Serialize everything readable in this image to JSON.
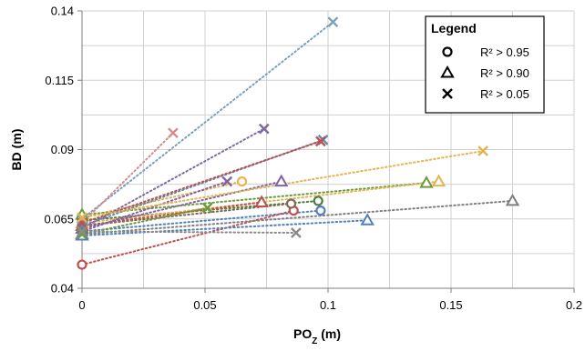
{
  "chart_data": {
    "type": "scatter",
    "xlabel_main": "PO",
    "xlabel_sub": "Z",
    "xlabel_unit": " (m)",
    "ylabel": "BD (m)",
    "xlim": [
      0,
      0.2
    ],
    "ylim": [
      0.04,
      0.14
    ],
    "x_ticks": [
      0,
      0.05,
      0.1,
      0.15,
      0.2
    ],
    "x_tick_labels": [
      "0",
      "0.05",
      "0.1",
      "0.15",
      "0.2"
    ],
    "y_ticks": [
      0.04,
      0.065,
      0.09,
      0.115,
      0.14
    ],
    "y_tick_labels": [
      "0.04",
      "0.065",
      "0.09",
      "0.115",
      "0.14"
    ],
    "grid": true,
    "legend": {
      "title": "Legend",
      "placement": "top-right",
      "entries": [
        {
          "marker": "circle",
          "label": "R² > 0.95"
        },
        {
          "marker": "triangle",
          "label": "R² > 0.90"
        },
        {
          "marker": "x",
          "label": "R² > 0.05"
        }
      ]
    },
    "series": [
      {
        "marker": "circle",
        "color": "#4f81bd",
        "points": [
          [
            0,
            0.0605
          ],
          [
            0.097,
            0.068
          ]
        ]
      },
      {
        "marker": "circle",
        "color": "#4a7c3f",
        "points": [
          [
            0,
            0.0645
          ],
          [
            0.096,
            0.0715
          ]
        ]
      },
      {
        "marker": "circle",
        "color": "#c0504d",
        "points": [
          [
            0,
            0.0485
          ],
          [
            0.086,
            0.068
          ]
        ]
      },
      {
        "marker": "circle",
        "color": "#7f6a4f",
        "points": [
          [
            0,
            0.0625
          ],
          [
            0.085,
            0.0705
          ]
        ]
      },
      {
        "marker": "circle",
        "color": "#e6b450",
        "points": [
          [
            0,
            0.0655
          ],
          [
            0.065,
            0.0785
          ]
        ]
      },
      {
        "marker": "triangle",
        "color": "#7f7f7f",
        "points": [
          [
            0,
            0.0595
          ],
          [
            0.175,
            0.0715
          ]
        ]
      },
      {
        "marker": "triangle",
        "color": "#6b9b3a",
        "points": [
          [
            0,
            0.0665
          ],
          [
            0.14,
            0.078
          ]
        ]
      },
      {
        "marker": "triangle",
        "color": "#4f81bd",
        "points": [
          [
            0,
            0.059
          ],
          [
            0.116,
            0.0645
          ]
        ]
      },
      {
        "marker": "triangle",
        "color": "#e6b450",
        "points": [
          [
            0,
            0.0635
          ],
          [
            0.145,
            0.0785
          ]
        ]
      },
      {
        "marker": "triangle",
        "color": "#c0504d",
        "points": [
          [
            0,
            0.0625
          ],
          [
            0.073,
            0.071
          ]
        ]
      },
      {
        "marker": "triangle",
        "color": "#8064a2",
        "points": [
          [
            0,
            0.0615
          ],
          [
            0.081,
            0.0785
          ]
        ]
      },
      {
        "marker": "x",
        "color": "#7ba0be",
        "points": [
          [
            0,
            0.065
          ],
          [
            0.102,
            0.136
          ]
        ]
      },
      {
        "marker": "x",
        "color": "#d68b8b",
        "points": [
          [
            0,
            0.0635
          ],
          [
            0.037,
            0.096
          ]
        ]
      },
      {
        "marker": "x",
        "color": "#7f6a9f",
        "points": [
          [
            0,
            0.0615
          ],
          [
            0.074,
            0.0975
          ]
        ]
      },
      {
        "marker": "x",
        "color": "#5c8ab0",
        "points": [
          [
            0,
            0.0625
          ],
          [
            0.098,
            0.0935
          ]
        ]
      },
      {
        "marker": "x",
        "color": "#c0504d",
        "points": [
          [
            0,
            0.0635
          ],
          [
            0.097,
            0.093
          ]
        ]
      },
      {
        "marker": "x",
        "color": "#8064a2",
        "points": [
          [
            0,
            0.0605
          ],
          [
            0.059,
            0.0785
          ]
        ]
      },
      {
        "marker": "x",
        "color": "#e6b450",
        "points": [
          [
            0,
            0.0655
          ],
          [
            0.163,
            0.0895
          ]
        ]
      },
      {
        "marker": "x",
        "color": "#6b9b3a",
        "points": [
          [
            0,
            0.0595
          ],
          [
            0.051,
            0.069
          ]
        ]
      },
      {
        "marker": "x",
        "color": "#8a8a8a",
        "points": [
          [
            0,
            0.0605
          ],
          [
            0.087,
            0.06
          ]
        ]
      }
    ]
  }
}
